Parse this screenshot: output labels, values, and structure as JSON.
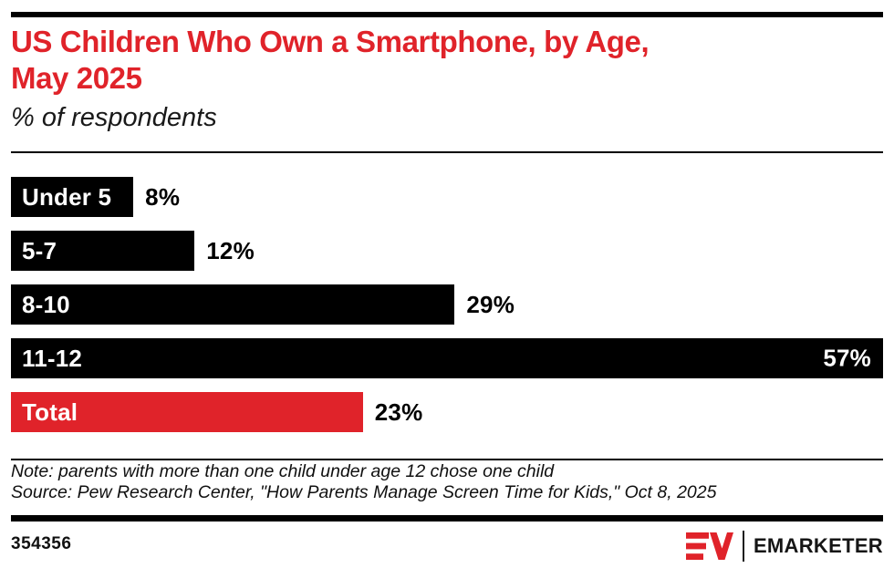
{
  "header": {
    "title_line1": "US Children Who Own a Smartphone, by Age,",
    "title_line2": "May 2025",
    "subtitle": "% of respondents"
  },
  "chart_data": {
    "type": "bar",
    "orientation": "horizontal",
    "title": "US Children Who Own a Smartphone, by Age, May 2025",
    "subtitle": "% of respondents",
    "unit": "%",
    "categories": [
      "Under 5",
      "5-7",
      "8-10",
      "11-12",
      "Total"
    ],
    "values": [
      8,
      12,
      29,
      57,
      23
    ],
    "xlim": [
      0,
      57
    ],
    "grid": false,
    "legend": false,
    "rows": [
      {
        "label": "Under 5",
        "value": 8,
        "value_label": "8%",
        "color": "#000000",
        "value_inside": false
      },
      {
        "label": "5-7",
        "value": 12,
        "value_label": "12%",
        "color": "#000000",
        "value_inside": false
      },
      {
        "label": "8-10",
        "value": 29,
        "value_label": "29%",
        "color": "#000000",
        "value_inside": false
      },
      {
        "label": "11-12",
        "value": 57,
        "value_label": "57%",
        "color": "#000000",
        "value_inside": true
      },
      {
        "label": "Total",
        "value": 23,
        "value_label": "23%",
        "color": "#E0232A",
        "value_inside": false
      }
    ]
  },
  "footnotes": {
    "note": "Note: parents with more than one child under age 12 chose one child",
    "source": "Source: Pew Research Center, \"How Parents Manage Screen Time for Kids,\" Oct 8, 2025"
  },
  "footer": {
    "chart_id": "354356",
    "brand": "EMARKETER"
  },
  "colors": {
    "accent_red": "#E0232A",
    "bar_black": "#000000"
  }
}
